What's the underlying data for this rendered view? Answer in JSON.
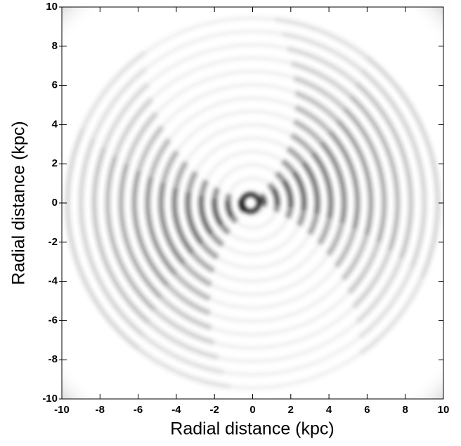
{
  "chart_data": {
    "type": "image",
    "xlabel": "Radial distance (kpc)",
    "ylabel": "Radial distance (kpc)",
    "xlim": [
      -10,
      10
    ],
    "ylim": [
      -10,
      10
    ],
    "xticks": [
      -10,
      -8,
      -6,
      -4,
      -2,
      0,
      2,
      4,
      6,
      8,
      10
    ],
    "yticks": [
      -10,
      -8,
      -6,
      -4,
      -2,
      0,
      2,
      4,
      6,
      8,
      10
    ]
  }
}
